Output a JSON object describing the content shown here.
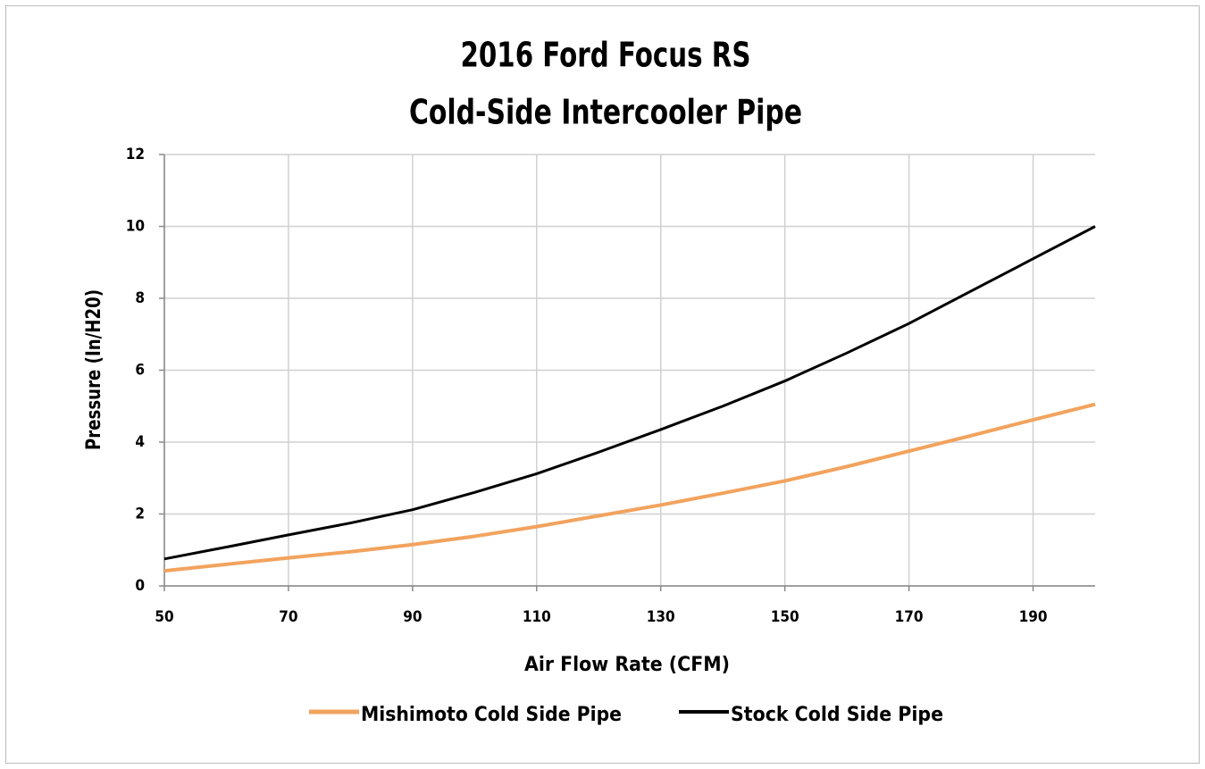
{
  "chart_data": {
    "type": "line",
    "title": "2016 Ford Focus RS",
    "subtitle": "Cold-Side Intercooler Pipe",
    "xlabel": "Air Flow Rate (CFM)",
    "ylabel": "Pressure (In/H20)",
    "x": [
      50,
      60,
      70,
      80,
      90,
      100,
      110,
      120,
      130,
      140,
      150,
      160,
      170,
      180,
      190,
      200
    ],
    "series": [
      {
        "name": "Mishimoto Cold Side Pipe",
        "color": "#f2a35e",
        "values": [
          0.42,
          0.6,
          0.78,
          0.95,
          1.15,
          1.38,
          1.65,
          1.95,
          2.25,
          2.58,
          2.92,
          3.32,
          3.75,
          4.18,
          4.62,
          5.05
        ]
      },
      {
        "name": "Stock Cold Side Pipe",
        "color": "#000000",
        "values": [
          0.75,
          1.08,
          1.42,
          1.75,
          2.12,
          2.6,
          3.12,
          3.72,
          4.35,
          5.0,
          5.7,
          6.48,
          7.3,
          8.2,
          9.1,
          10.0
        ]
      }
    ],
    "xlim": [
      50,
      200
    ],
    "xticks": [
      50,
      70,
      90,
      110,
      130,
      150,
      170,
      190
    ],
    "ylim": [
      0,
      12
    ],
    "yticks": [
      0,
      2,
      4,
      6,
      8,
      10,
      12
    ],
    "grid": true,
    "legend": "bottom"
  }
}
